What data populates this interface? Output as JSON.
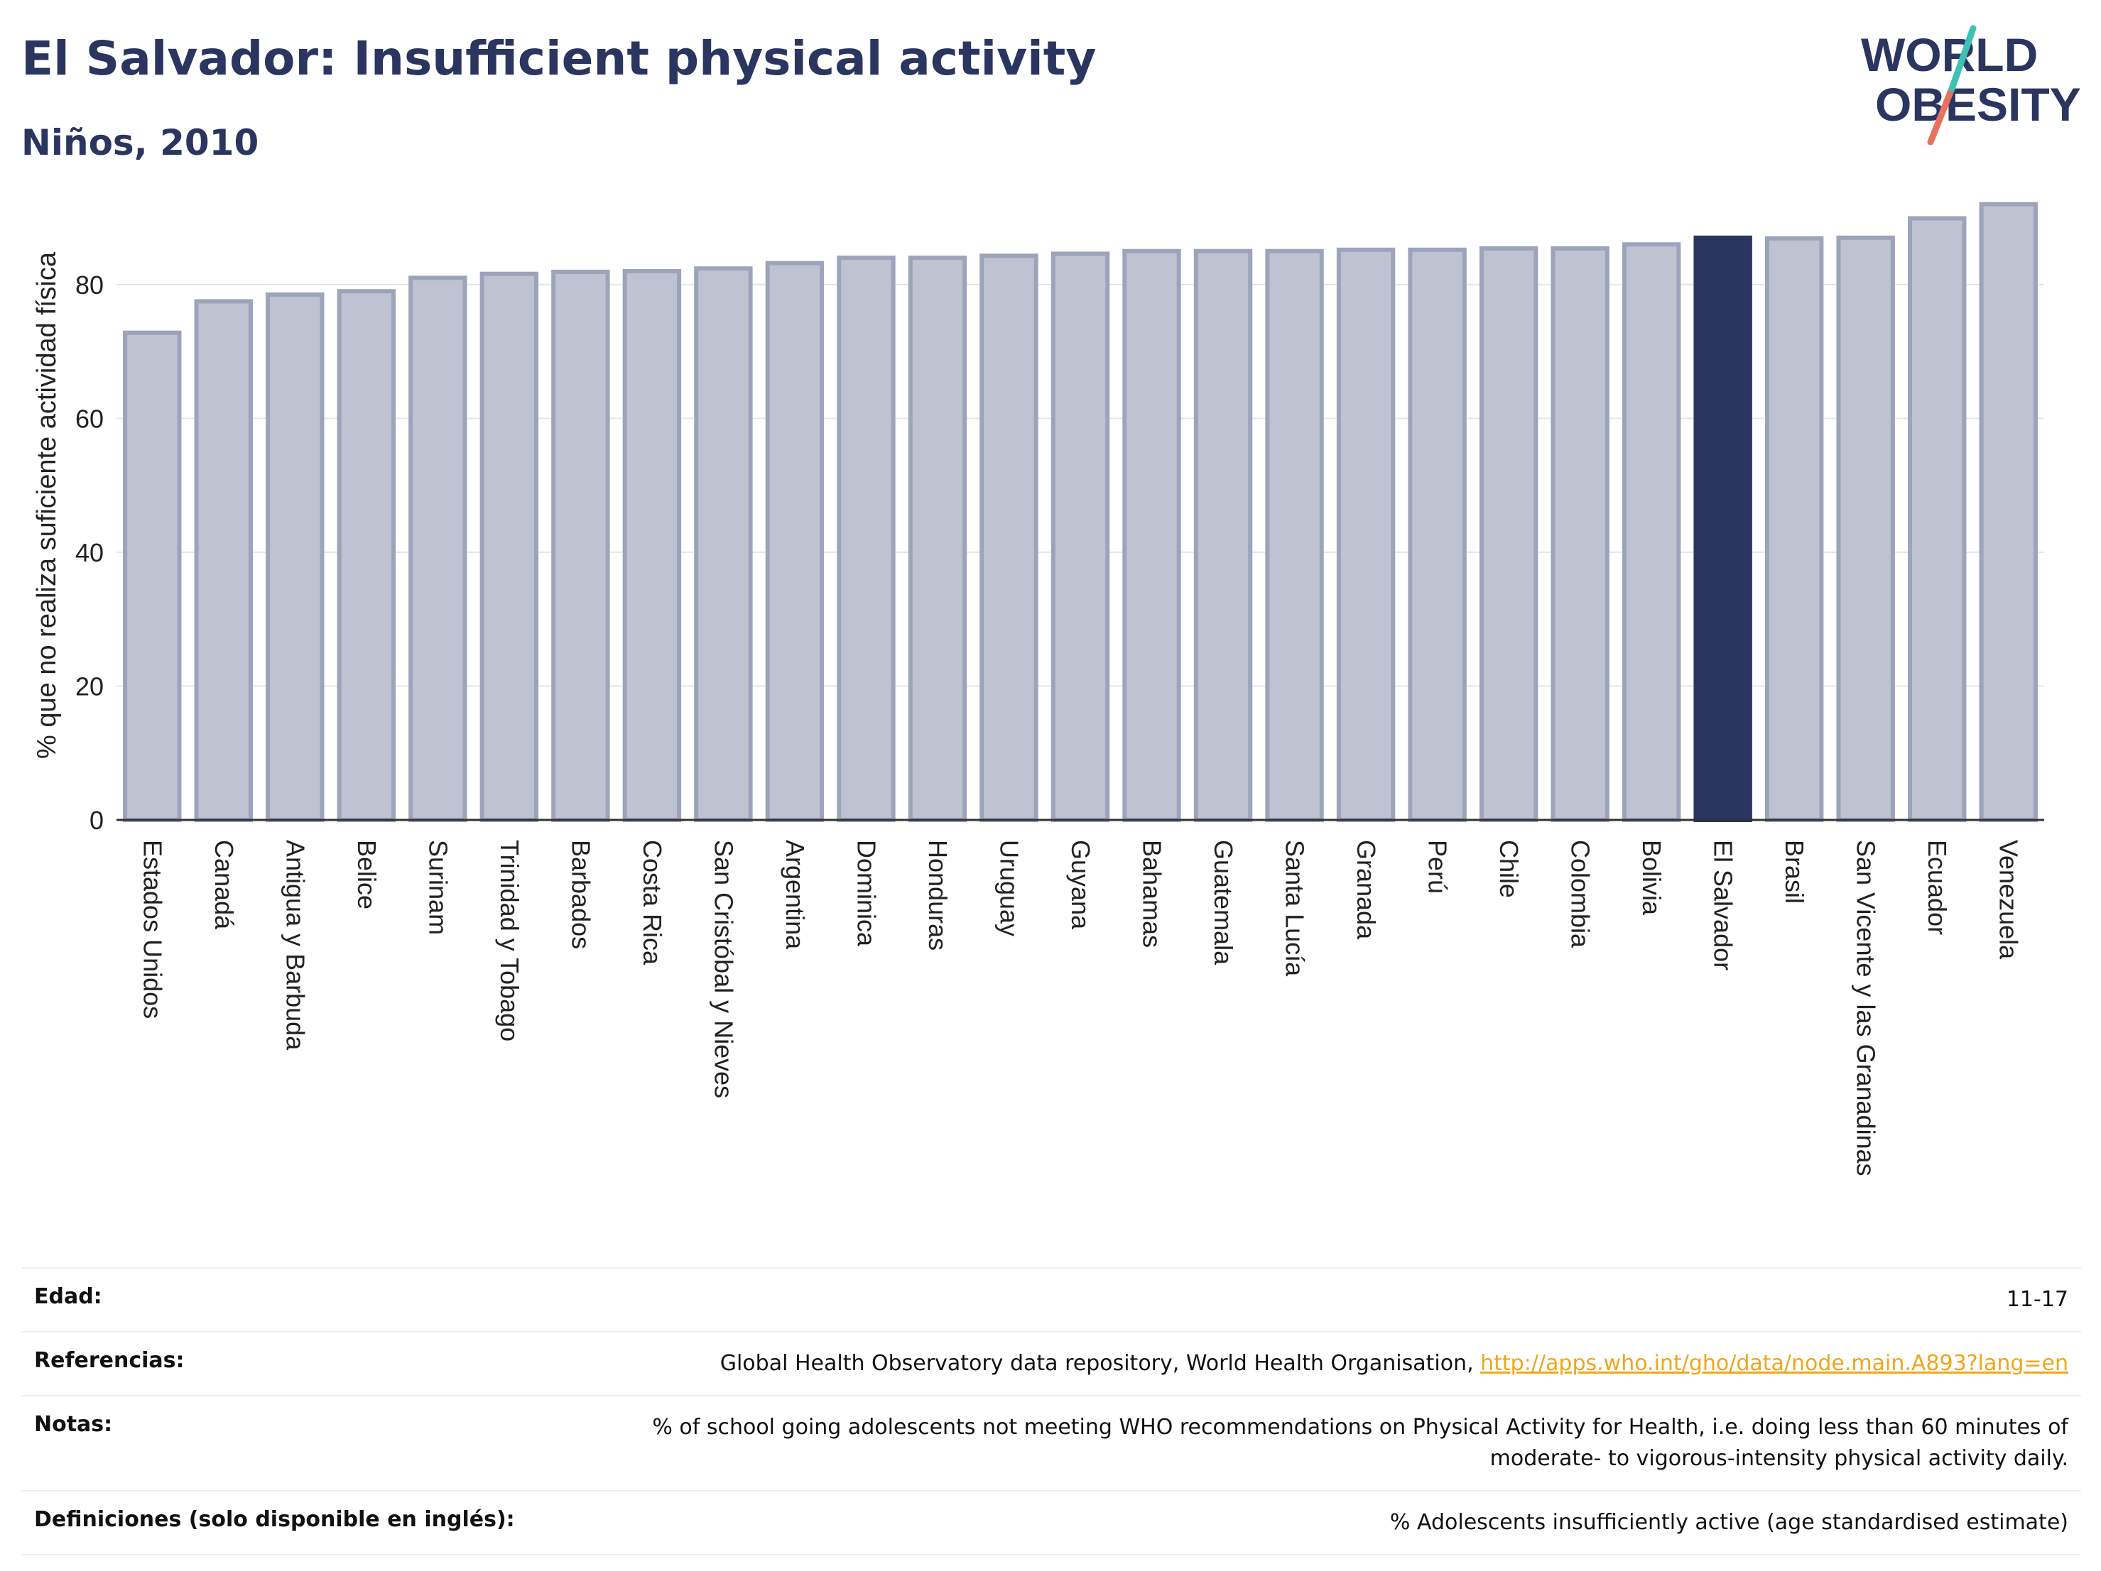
{
  "header": {
    "title": "El Salvador: Insufficient physical activity",
    "subtitle": "Niños, 2010"
  },
  "logo": {
    "line1": "WORLD",
    "line2": "OBESITY"
  },
  "colors": {
    "highlight": "#2a3560",
    "bar": "#bfc3d1",
    "bar_border": "#9da3bb",
    "accent_teal": "#3fc1b3",
    "accent_red": "#e8705f",
    "link": "#f0a61c"
  },
  "chart_data": {
    "type": "bar",
    "ylabel": "% que no realiza suficiente actividad física",
    "ylim": [
      0,
      96
    ],
    "yticks": [
      0,
      20,
      40,
      60,
      80
    ],
    "grid": true,
    "highlight": "El Salvador",
    "categories": [
      "Estados Unidos",
      "Canadá",
      "Antigua y Barbuda",
      "Belice",
      "Surinam",
      "Trinidad y Tobago",
      "Barbados",
      "Costa Rica",
      "San Cristóbal y Nieves",
      "Argentina",
      "Dominica",
      "Honduras",
      "Uruguay",
      "Guyana",
      "Bahamas",
      "Guatemala",
      "Santa Lucía",
      "Granada",
      "Perú",
      "Chile",
      "Colombia",
      "Bolivia",
      "El Salvador",
      "Brasil",
      "San Vicente y las Granadinas",
      "Ecuador",
      "Venezuela"
    ],
    "values": [
      72.8,
      77.5,
      78.5,
      79.0,
      81.0,
      81.6,
      81.9,
      82.0,
      82.4,
      83.2,
      84.0,
      84.0,
      84.3,
      84.6,
      85.0,
      85.0,
      85.0,
      85.2,
      85.2,
      85.4,
      85.4,
      86.0,
      87.0,
      86.9,
      87.0,
      89.9,
      92.0
    ]
  },
  "table": {
    "rows": [
      {
        "label": "Edad:",
        "value": "11-17"
      },
      {
        "label": "Referencias:",
        "value": "Global Health Observatory data repository, World Health Organisation, ",
        "link": "http://apps.who.int/gho/data/node.main.A893?lang=en"
      },
      {
        "label": "Notas:",
        "value": "% of school going adolescents not meeting WHO recommendations on Physical Activity for Health, i.e. doing less than 60 minutes of moderate- to vigorous-intensity physical activity daily."
      },
      {
        "label": "Definiciones (solo disponible en inglés):",
        "value": "% Adolescents insufficiently active (age standardised estimate)"
      }
    ]
  }
}
